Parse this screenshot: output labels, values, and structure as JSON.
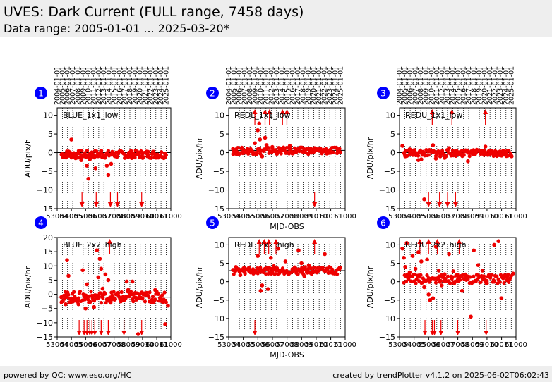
{
  "header": {
    "title": "UVES: Dark Current (FULL range, 7458 days)",
    "subtitle": "Data range: 2005-01-01 ... 2025-03-20*"
  },
  "footer": {
    "left": "powered by QC: www.eso.org/HC",
    "right": "created by trendPlotter v4.1.2 on 2025-06-02T06:02:43"
  },
  "colors": {
    "data": "#ee0000",
    "badge": "#0000ff",
    "grid": "#000000",
    "zero_line": "#000000"
  },
  "chart_data": {
    "date_ticks": [
      "2004-01-01",
      "2005-01-01",
      "2006-01-01",
      "2007-01-01",
      "2008-01-01",
      "2009-01-01",
      "2010-01-01",
      "2011-01-01",
      "2012-01-01",
      "2013-01-01",
      "2014-01-01",
      "2015-01-01",
      "2016-01-01",
      "2017-01-01",
      "2018-01-01",
      "2019-01-01",
      "2020-01-01",
      "2021-01-01",
      "2022-01-01",
      "2023-01-01",
      "2024-01-01",
      "2025-01-01"
    ],
    "x_ticks": [
      "53004",
      "54005",
      "55006",
      "56007",
      "57008",
      "58009",
      "59010",
      "60011",
      "61000"
    ],
    "x_tick_values": [
      53004,
      54005,
      55006,
      56007,
      57008,
      58009,
      59010,
      60011,
      61000
    ],
    "xlim": [
      53004,
      61000
    ],
    "xlabel": "MJD-OBS",
    "panels": [
      {
        "id": "1",
        "type": "scatter",
        "label": "BLUE_1x1_low",
        "ylabel": "ADU/pix/h",
        "ylim": [
          -15,
          12
        ],
        "yticks": [
          10,
          5,
          0,
          -5,
          -10,
          -15
        ],
        "ref_y": 0,
        "show_xlabel": false,
        "points": [
          [
            53400,
            -0.5
          ],
          [
            53600,
            -1.2
          ],
          [
            53800,
            0.3
          ],
          [
            54000,
            3.5
          ],
          [
            54100,
            -0.8
          ],
          [
            54300,
            -1.5
          ],
          [
            54500,
            -0.2
          ],
          [
            54700,
            -2.0
          ],
          [
            55000,
            -1.1
          ],
          [
            55100,
            -3.5
          ],
          [
            55200,
            -7.0
          ],
          [
            55300,
            -1.8
          ],
          [
            55500,
            -0.4
          ],
          [
            55700,
            -4.2
          ],
          [
            55900,
            -0.9
          ],
          [
            56100,
            0.5
          ],
          [
            56300,
            -1.3
          ],
          [
            56500,
            -3.5
          ],
          [
            56600,
            -6.0
          ],
          [
            56800,
            -3.0
          ],
          [
            57000,
            -0.6
          ],
          [
            57300,
            -0.2
          ],
          [
            57600,
            0.1
          ],
          [
            58000,
            -1.2
          ],
          [
            58300,
            -0.1
          ],
          [
            58600,
            -0.4
          ],
          [
            59000,
            -0.3
          ],
          [
            59400,
            -0.6
          ],
          [
            59800,
            -0.2
          ],
          [
            60200,
            -0.8
          ],
          [
            60600,
            -0.3
          ]
        ],
        "band": {
          "y_lo": -1.5,
          "y_hi": 0.6
        },
        "arrows_down": [
          54750,
          55750,
          56750,
          57250,
          58950
        ],
        "arrows_up": []
      },
      {
        "id": "2",
        "type": "scatter",
        "label": "REDL_1x1_low",
        "ylabel": "ADU/pix/hr",
        "ylim": [
          -15,
          12
        ],
        "yticks": [
          10,
          5,
          0,
          -5,
          -10,
          -15
        ],
        "ref_y": 0.6,
        "show_xlabel": true,
        "points": [
          [
            53300,
            1.0
          ],
          [
            53600,
            -0.5
          ],
          [
            54000,
            0.2
          ],
          [
            54500,
            0.5
          ],
          [
            54800,
            2.5
          ],
          [
            54900,
            -0.5
          ],
          [
            55000,
            6.0
          ],
          [
            55100,
            7.8
          ],
          [
            55150,
            3.5
          ],
          [
            55300,
            -1.0
          ],
          [
            55500,
            4.0
          ],
          [
            55600,
            2.0
          ],
          [
            56000,
            1.5
          ],
          [
            56300,
            -0.3
          ],
          [
            56800,
            0.6
          ],
          [
            57200,
            1.8
          ],
          [
            57600,
            0.4
          ],
          [
            58200,
            0.9
          ],
          [
            58900,
            1.2
          ],
          [
            59400,
            0.3
          ],
          [
            60000,
            0.8
          ],
          [
            60500,
            0.5
          ]
        ],
        "band": {
          "y_lo": -0.4,
          "y_hi": 1.4
        },
        "arrows_down": [
          58900
        ],
        "arrows_up": [
          54800,
          55500,
          55800,
          56700,
          57000
        ]
      },
      {
        "id": "3",
        "type": "scatter",
        "label": "REDU_1x1_low",
        "ylabel": "ADU/pix/hr",
        "ylim": [
          -15,
          12
        ],
        "yticks": [
          10,
          5,
          0,
          -5,
          -10,
          -15
        ],
        "ref_y": 0,
        "show_xlabel": false,
        "points": [
          [
            53200,
            1.8
          ],
          [
            53400,
            -1.0
          ],
          [
            53700,
            0.9
          ],
          [
            54100,
            -0.5
          ],
          [
            54300,
            -2.0
          ],
          [
            54500,
            -1.8
          ],
          [
            54700,
            -12.5
          ],
          [
            54900,
            -0.7
          ],
          [
            55300,
            2.0
          ],
          [
            55500,
            -1.6
          ],
          [
            55800,
            -1.0
          ],
          [
            56100,
            -1.4
          ],
          [
            56400,
            1.2
          ],
          [
            56800,
            -0.2
          ],
          [
            57300,
            0.5
          ],
          [
            57700,
            -2.3
          ],
          [
            58200,
            0.1
          ],
          [
            58600,
            0.4
          ],
          [
            58900,
            1.6
          ],
          [
            59400,
            -0.2
          ],
          [
            59900,
            0.3
          ],
          [
            60300,
            -0.1
          ],
          [
            60700,
            -1.0
          ]
        ],
        "band": {
          "y_lo": -1.0,
          "y_hi": 0.8
        },
        "arrows_down": [
          55000,
          55750,
          56300,
          56850
        ],
        "arrows_up": [
          55250,
          56600,
          58900
        ]
      },
      {
        "id": "4",
        "type": "scatter",
        "label": "BLUE_2x2_high",
        "ylabel": "ADU/pix/hr",
        "ylim": [
          -15,
          20
        ],
        "yticks": [
          20,
          15,
          10,
          5,
          0,
          -5,
          -10,
          -15
        ],
        "ref_y": -1,
        "show_xlabel": false,
        "points": [
          [
            53300,
            -1.0
          ],
          [
            53600,
            -3.5
          ],
          [
            53700,
            12.0
          ],
          [
            53800,
            6.5
          ],
          [
            54000,
            -2.0
          ],
          [
            54200,
            -1.5
          ],
          [
            54500,
            -3.5
          ],
          [
            54800,
            8.5
          ],
          [
            55000,
            -5.0
          ],
          [
            55100,
            3.5
          ],
          [
            55300,
            -2.5
          ],
          [
            55600,
            -4.5
          ],
          [
            55800,
            15.5
          ],
          [
            55900,
            6.0
          ],
          [
            56000,
            12.5
          ],
          [
            56100,
            9.0
          ],
          [
            56200,
            2.0
          ],
          [
            56400,
            7.0
          ],
          [
            56600,
            5.0
          ],
          [
            56800,
            -2.0
          ],
          [
            57000,
            -1.5
          ],
          [
            57300,
            0.5
          ],
          [
            57600,
            -2.0
          ],
          [
            57900,
            4.5
          ],
          [
            58000,
            1.5
          ],
          [
            58300,
            4.5
          ],
          [
            58500,
            0.5
          ],
          [
            58700,
            -14.0
          ],
          [
            59000,
            -1.5
          ],
          [
            59500,
            -2.5
          ],
          [
            59900,
            1.5
          ],
          [
            60300,
            -1.0
          ],
          [
            60600,
            -10.5
          ],
          [
            60800,
            -4.0
          ]
        ],
        "band": {
          "y_lo": -3.0,
          "y_hi": 1.0
        },
        "arrows_down": [
          54550,
          54900,
          55100,
          55300,
          55450,
          55650,
          56100,
          56600,
          57700,
          58950
        ],
        "arrows_up": [
          56700
        ]
      },
      {
        "id": "5",
        "type": "scatter",
        "label": "REDL_2x2_high",
        "ylabel": "ADU/pix/hr",
        "ylim": [
          -15,
          12
        ],
        "yticks": [
          10,
          5,
          0,
          -5,
          -10,
          -15
        ],
        "ref_y": 3,
        "show_xlabel": true,
        "points": [
          [
            53300,
            3.2
          ],
          [
            53500,
            4.0
          ],
          [
            53800,
            1.8
          ],
          [
            54100,
            2.5
          ],
          [
            54400,
            3.8
          ],
          [
            54700,
            2.2
          ],
          [
            55000,
            7.0
          ],
          [
            55200,
            -2.5
          ],
          [
            55300,
            -1.0
          ],
          [
            55500,
            3.5
          ],
          [
            55700,
            -2.0
          ],
          [
            55900,
            6.5
          ],
          [
            56100,
            4.2
          ],
          [
            56400,
            9.0
          ],
          [
            56700,
            3.0
          ],
          [
            56900,
            5.5
          ],
          [
            57200,
            2.4
          ],
          [
            57500,
            3.6
          ],
          [
            57800,
            8.5
          ],
          [
            58000,
            5.0
          ],
          [
            58200,
            1.5
          ],
          [
            58500,
            4.4
          ],
          [
            58800,
            2.8
          ],
          [
            59200,
            3.0
          ],
          [
            59600,
            7.5
          ],
          [
            59900,
            4.0
          ],
          [
            60200,
            2.5
          ],
          [
            60600,
            3.4
          ]
        ],
        "band": {
          "y_lo": 2.0,
          "y_hi": 4.0
        },
        "arrows_down": [
          54800
        ],
        "arrows_up": [
          55100,
          55450,
          55750,
          56250,
          58900
        ]
      },
      {
        "id": "6",
        "type": "scatter",
        "label": "REDU_2x2_high",
        "ylabel": "ADU/pix/hr",
        "ylim": [
          -15,
          12
        ],
        "yticks": [
          10,
          5,
          0,
          -5,
          -10,
          -15
        ],
        "ref_y": 1,
        "show_xlabel": false,
        "points": [
          [
            53200,
            9.0
          ],
          [
            53300,
            6.5
          ],
          [
            53400,
            4.0
          ],
          [
            53500,
            10.5
          ],
          [
            53700,
            2.5
          ],
          [
            53900,
            7.0
          ],
          [
            54100,
            3.5
          ],
          [
            54300,
            8.0
          ],
          [
            54500,
            5.5
          ],
          [
            54700,
            -1.5
          ],
          [
            54900,
            6.0
          ],
          [
            55000,
            -3.5
          ],
          [
            55100,
            -5.0
          ],
          [
            55300,
            -4.5
          ],
          [
            55500,
            9.5
          ],
          [
            55700,
            3.0
          ],
          [
            55900,
            -1.0
          ],
          [
            56100,
            2.0
          ],
          [
            56400,
            7.5
          ],
          [
            56700,
            2.8
          ],
          [
            57000,
            0.5
          ],
          [
            57300,
            -2.5
          ],
          [
            57600,
            1.2
          ],
          [
            57900,
            -9.5
          ],
          [
            58100,
            8.5
          ],
          [
            58400,
            4.5
          ],
          [
            58700,
            3.0
          ],
          [
            59000,
            0.2
          ],
          [
            59500,
            10.0
          ],
          [
            59800,
            11.0
          ],
          [
            60000,
            -4.5
          ],
          [
            60400,
            1.5
          ],
          [
            60800,
            2.2
          ]
        ],
        "band": {
          "y_lo": -0.5,
          "y_hi": 2.0
        },
        "arrows_down": [
          54750,
          55250,
          55400,
          55850,
          57000,
          58950
        ],
        "arrows_up": [
          54400,
          55000,
          55600,
          57100
        ]
      }
    ]
  }
}
